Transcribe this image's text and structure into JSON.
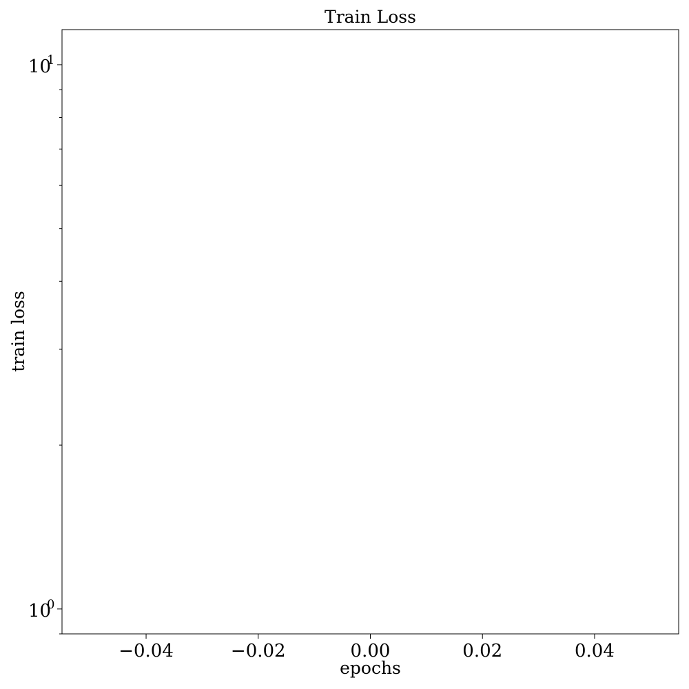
{
  "chart_data": {
    "type": "line",
    "title": "Train Loss",
    "xlabel": "epochs",
    "ylabel": "train loss",
    "xlim": [
      -0.055,
      0.055
    ],
    "ylim": [
      0.9,
      11.6
    ],
    "yscale": "log",
    "grid": false,
    "legend": "none",
    "x_ticks": [
      {
        "value": -0.04,
        "label": "−0.04"
      },
      {
        "value": -0.02,
        "label": "−0.02"
      },
      {
        "value": 0.0,
        "label": "0.00"
      },
      {
        "value": 0.02,
        "label": "0.02"
      },
      {
        "value": 0.04,
        "label": "0.04"
      }
    ],
    "y_ticks": [
      {
        "value": 1,
        "base": "10",
        "exp": "0"
      },
      {
        "value": 10,
        "base": "10",
        "exp": "1"
      }
    ],
    "y_minor_ticks": [
      0.9,
      2,
      3,
      4,
      5,
      6,
      7,
      8,
      9
    ],
    "series": []
  }
}
